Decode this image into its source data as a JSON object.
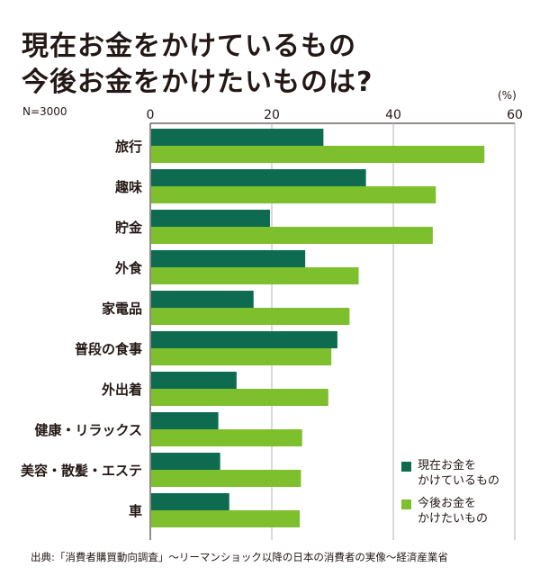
{
  "title_lines": [
    "現在お金をかけているもの",
    "今後お金をかけたいものは?"
  ],
  "sample_note": "N=3000",
  "unit_label": "(%)",
  "legend": {
    "current": "現在お金を\nかけているもの",
    "future": "今後お金を\nかけたいもの"
  },
  "source": "出典:「消費者購買動向調査」〜リーマンショック以降の日本の消費者の実像〜経済産業省",
  "chart_data": {
    "type": "bar",
    "orientation": "horizontal",
    "categories": [
      "旅行",
      "趣味",
      "貯金",
      "外食",
      "家電品",
      "普段の食事",
      "外出着",
      "健康・リラックス",
      "美容・散髪・エステ",
      "車"
    ],
    "series": [
      {
        "name": "現在お金をかけているもの",
        "color": "#0e6b4f",
        "values": [
          28.5,
          35.5,
          19.7,
          25.5,
          17.0,
          30.8,
          14.2,
          11.2,
          11.5,
          13.0
        ]
      },
      {
        "name": "今後お金をかけたいもの",
        "color": "#7dbf2c",
        "values": [
          55.0,
          47.0,
          46.5,
          34.3,
          32.8,
          29.8,
          29.3,
          25.0,
          24.8,
          24.6
        ]
      }
    ],
    "xlim": [
      0,
      60
    ],
    "xticks": [
      0,
      20,
      40,
      60
    ],
    "grid": true,
    "legend_position": "bottom-right"
  }
}
